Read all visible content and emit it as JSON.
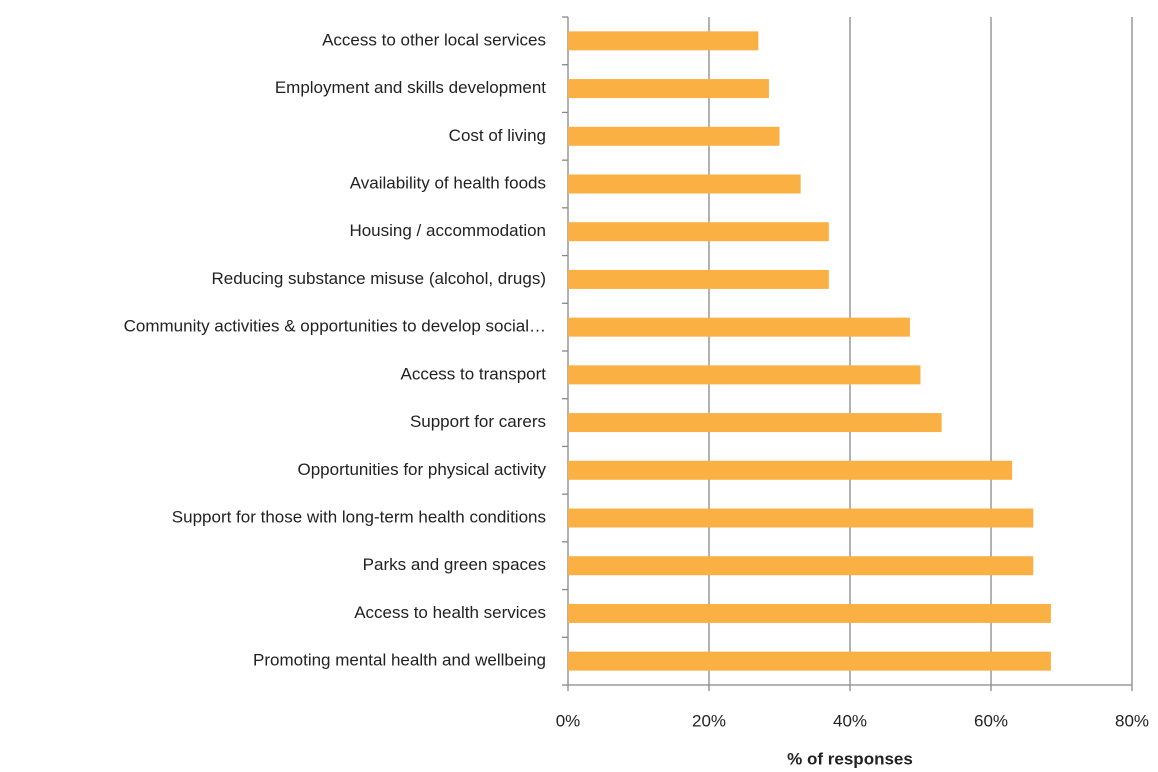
{
  "chart_data": {
    "type": "barh",
    "x_label": "% of responses",
    "categories": [
      "Access to other local services",
      "Employment and skills development",
      "Cost of living",
      "Availability of health foods",
      "Housing / accommodation",
      "Reducing substance misuse (alcohol, drugs)",
      "Community activities & opportunities to develop social…",
      "Access to transport",
      "Support for carers",
      "Opportunities for physical activity",
      "Support for those with long-term health conditions",
      "Parks and green spaces",
      "Access to health services",
      "Promoting mental health and wellbeing"
    ],
    "values": [
      27,
      28.5,
      30,
      33,
      37,
      37,
      48.5,
      50,
      53,
      63,
      66,
      66,
      68.5,
      68.5
    ],
    "color": "#fbb044",
    "xlim": [
      0,
      80
    ],
    "xticks": [
      {
        "value": 0,
        "label": "0%"
      },
      {
        "value": 20,
        "label": "20%"
      },
      {
        "value": 40,
        "label": "40%"
      },
      {
        "value": 60,
        "label": "60%"
      },
      {
        "value": 80,
        "label": "80%"
      }
    ],
    "grid": true
  }
}
